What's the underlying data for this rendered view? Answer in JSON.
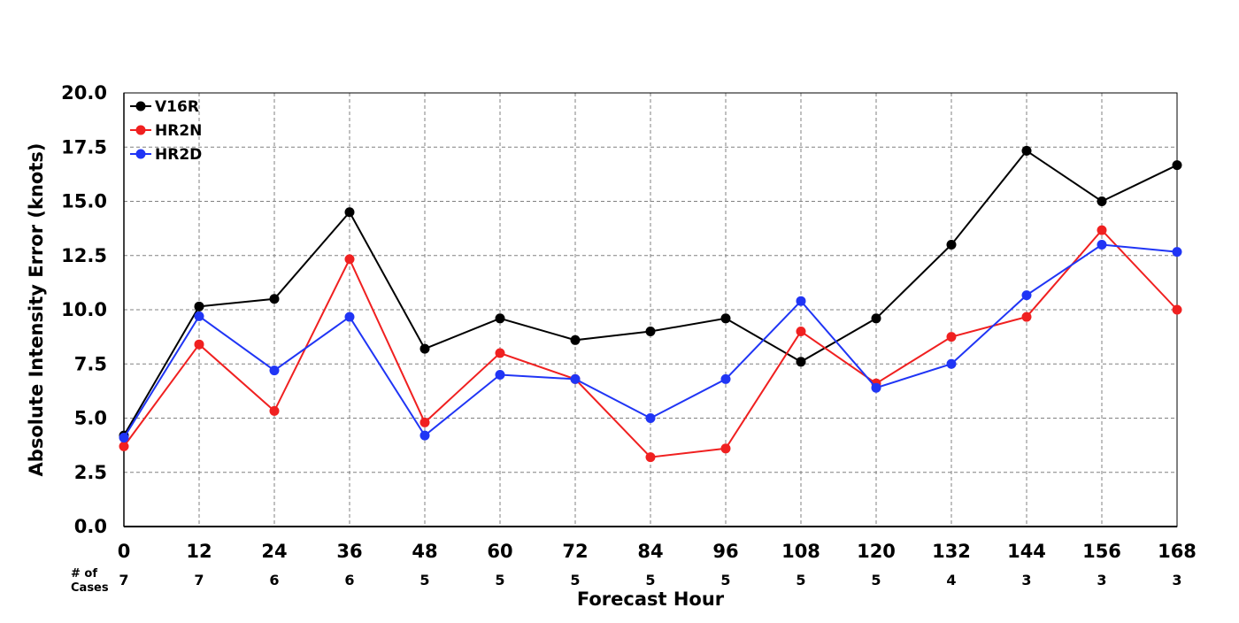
{
  "chart_data": {
    "type": "line",
    "title": "",
    "xlabel": "Forecast Hour",
    "ylabel": "Absolute Intensity Error (knots)",
    "x": [
      0,
      12,
      24,
      36,
      48,
      60,
      72,
      84,
      96,
      108,
      120,
      132,
      144,
      156,
      168
    ],
    "xlim": [
      0,
      168
    ],
    "ylim": [
      0,
      20
    ],
    "y_ticks": [
      "0.0",
      "2.5",
      "5.0",
      "7.5",
      "10.0",
      "12.5",
      "15.0",
      "17.5",
      "20.0"
    ],
    "grid": true,
    "legend_position": "top-left",
    "cases_label_line1": "# of",
    "cases_label_line2": "Cases",
    "cases": [
      7,
      7,
      6,
      6,
      5,
      5,
      5,
      5,
      5,
      5,
      5,
      4,
      3,
      3,
      3
    ],
    "series": [
      {
        "name": "V16R",
        "color": "#000000",
        "values": [
          4.2,
          10.15,
          10.5,
          14.5,
          8.2,
          9.6,
          8.6,
          9.0,
          9.6,
          7.6,
          9.6,
          13.0,
          17.33,
          15.0,
          16.67
        ]
      },
      {
        "name": "HR2N",
        "color": "#f02020",
        "values": [
          3.7,
          8.4,
          5.33,
          12.33,
          4.8,
          8.0,
          6.8,
          3.2,
          3.6,
          9.0,
          6.6,
          8.75,
          9.67,
          13.67,
          10.0
        ]
      },
      {
        "name": "HR2D",
        "color": "#2035f5",
        "values": [
          4.1,
          9.7,
          7.2,
          9.67,
          4.2,
          7.0,
          6.8,
          5.0,
          6.8,
          10.4,
          6.4,
          7.5,
          10.67,
          13.0,
          12.67
        ]
      }
    ]
  }
}
